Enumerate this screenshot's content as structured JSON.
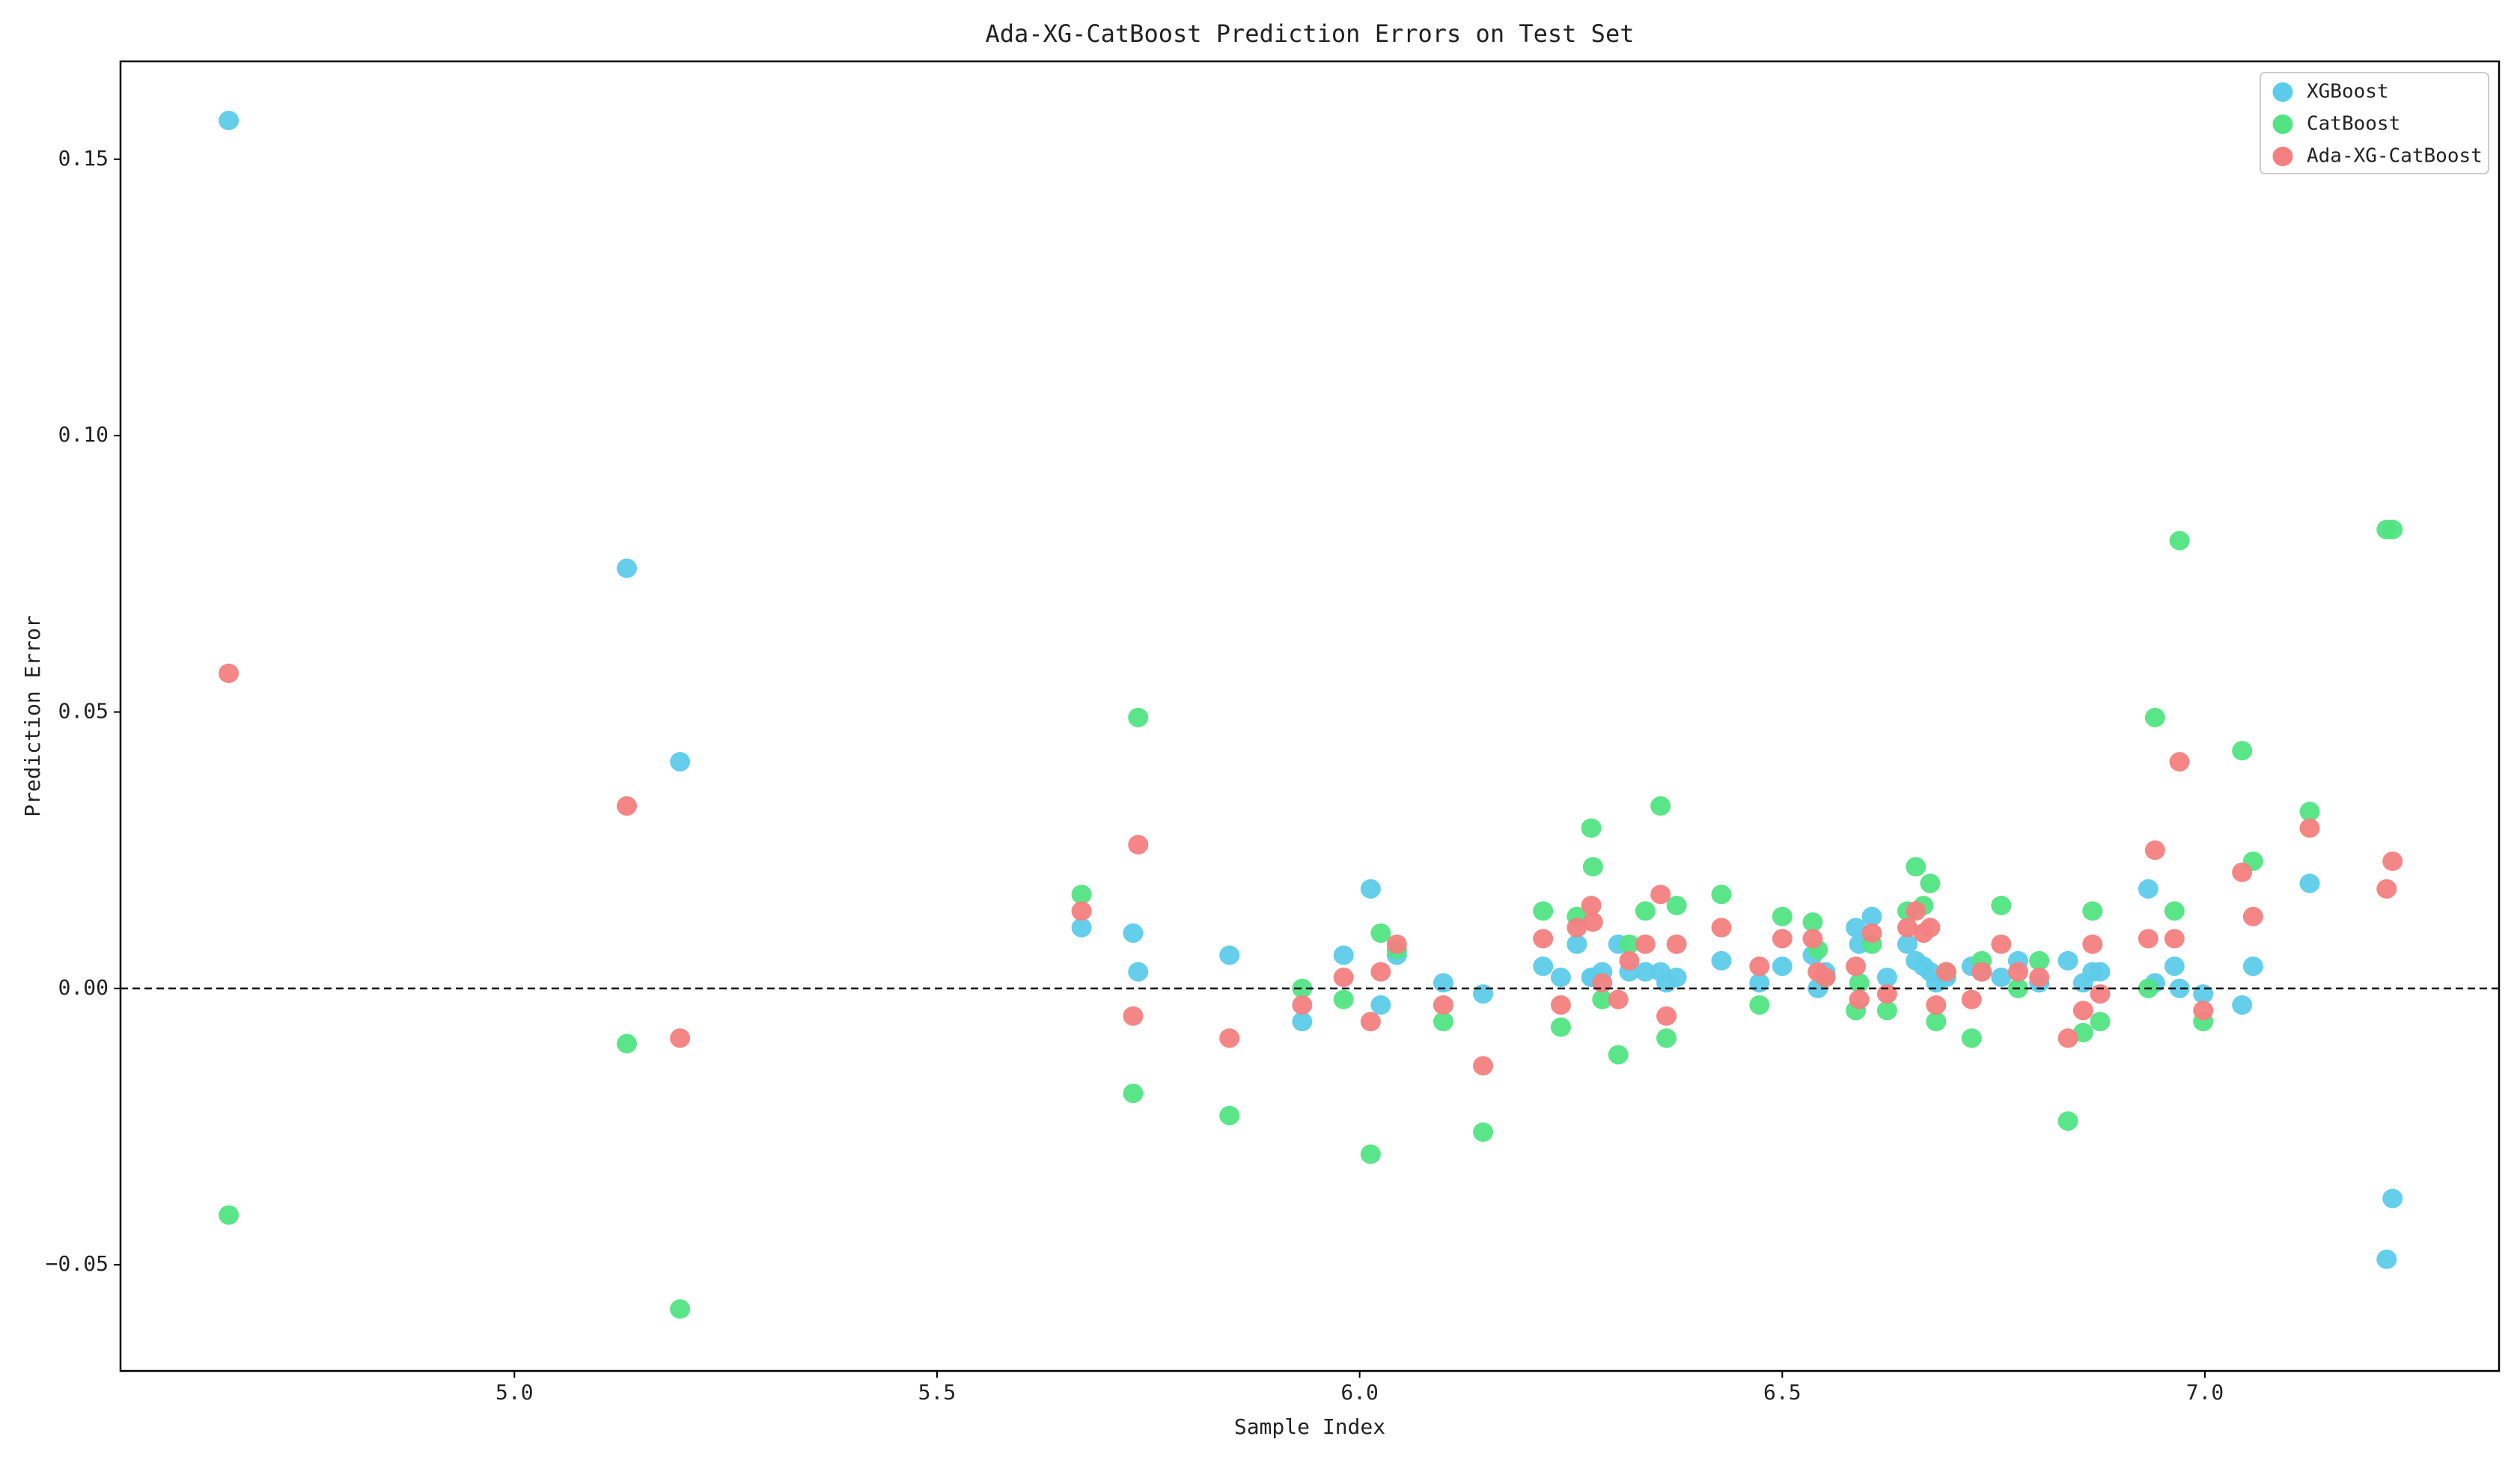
{
  "chart_data": {
    "type": "scatter",
    "title": "Ada-XG-CatBoost Prediction Errors on Test Set",
    "x_label": "Sample Index",
    "y_label": "Prediction Error",
    "x": [
      4.662,
      5.133,
      5.196,
      5.671,
      5.732,
      5.738,
      5.846,
      5.932,
      5.981,
      6.013,
      6.025,
      6.044,
      6.099,
      6.146,
      6.217,
      6.238,
      6.257,
      6.274,
      6.276,
      6.287,
      6.306,
      6.319,
      6.338,
      6.356,
      6.363,
      6.375,
      6.428,
      6.473,
      6.5,
      6.536,
      6.542,
      6.551,
      6.587,
      6.591,
      6.606,
      6.624,
      6.648,
      6.658,
      6.667,
      6.675,
      6.682,
      6.694,
      6.724,
      6.736,
      6.759,
      6.779,
      6.804,
      6.838,
      6.856,
      6.867,
      6.876,
      6.933,
      6.941,
      6.964,
      6.97,
      6.998,
      7.044,
      7.057,
      7.124,
      7.215,
      7.222
    ],
    "series": [
      {
        "name": "XGBoost",
        "color": "#5ccbea",
        "values": [
          0.157,
          0.076,
          0.041,
          0.011,
          0.01,
          0.003,
          0.006,
          -0.006,
          0.006,
          0.018,
          -0.003,
          0.006,
          0.001,
          -0.001,
          0.004,
          0.002,
          0.008,
          0.002,
          0.002,
          0.003,
          0.008,
          0.003,
          0.003,
          0.003,
          0.001,
          0.002,
          0.005,
          0.001,
          0.004,
          0.006,
          0,
          0.003,
          0.011,
          0.008,
          0.013,
          0.002,
          0.008,
          0.005,
          0.004,
          0.003,
          0.001,
          0.002,
          0.004,
          0.003,
          0.002,
          0.005,
          0.001,
          0.005,
          0.001,
          0.003,
          0.003,
          0.018,
          0.001,
          0.004,
          0,
          -0.001,
          -0.003,
          0.004,
          0.019,
          -0.049,
          -0.038
        ]
      },
      {
        "name": "CatBoost",
        "color": "#52e483",
        "values": [
          -0.041,
          -0.01,
          -0.058,
          0.017,
          -0.019,
          0.049,
          -0.023,
          0,
          -0.002,
          -0.03,
          0.01,
          0.007,
          -0.006,
          -0.026,
          0.014,
          -0.007,
          0.013,
          0.029,
          0.022,
          -0.002,
          -0.012,
          0.008,
          0.014,
          0.033,
          -0.009,
          0.015,
          0.017,
          -0.003,
          0.013,
          0.012,
          0.007,
          0.002,
          -0.004,
          0.001,
          0.008,
          -0.004,
          0.014,
          0.022,
          0.015,
          0.019,
          -0.006,
          0.003,
          -0.009,
          0.005,
          0.015,
          0,
          0.005,
          -0.024,
          -0.008,
          0.014,
          -0.006,
          0,
          0.049,
          0.014,
          0.081,
          -0.006,
          0.043,
          0.023,
          0.032,
          0.083,
          0.083
        ]
      },
      {
        "name": "Ada-XG-CatBoost",
        "color": "#f47f7f",
        "values": [
          0.057,
          0.033,
          -0.009,
          0.014,
          -0.005,
          0.026,
          -0.009,
          -0.003,
          0.002,
          -0.006,
          0.003,
          0.008,
          -0.003,
          -0.014,
          0.009,
          -0.003,
          0.011,
          0.015,
          0.012,
          0.001,
          -0.002,
          0.005,
          0.008,
          0.017,
          -0.005,
          0.008,
          0.011,
          0.004,
          0.009,
          0.009,
          0.003,
          0.002,
          0.004,
          -0.002,
          0.01,
          -0.001,
          0.011,
          0.014,
          0.01,
          0.011,
          -0.003,
          0.003,
          -0.002,
          0.003,
          0.008,
          0.003,
          0.002,
          -0.009,
          -0.004,
          0.008,
          -0.001,
          0.009,
          0.025,
          0.009,
          0.041,
          -0.004,
          0.021,
          0.013,
          0.029,
          0.018,
          0.023
        ]
      }
    ],
    "xlim": [
      4.534,
      7.348
    ],
    "ylim": [
      -0.0692,
      0.1677
    ],
    "xticks": [
      {
        "value": 5,
        "label": "5.0"
      },
      {
        "value": 5.5,
        "label": "5.5"
      },
      {
        "value": 6,
        "label": "6.0"
      },
      {
        "value": 6.5,
        "label": "6.5"
      },
      {
        "value": 7,
        "label": "7.0"
      }
    ],
    "yticks": [
      {
        "value": -0.05,
        "label": "−0.05"
      },
      {
        "value": 0,
        "label": "0.00"
      },
      0.05,
      {
        "value": 0.1,
        "label": "0.10"
      },
      0.15
    ],
    "hline": 0,
    "legend": "upper right",
    "grid": false
  }
}
